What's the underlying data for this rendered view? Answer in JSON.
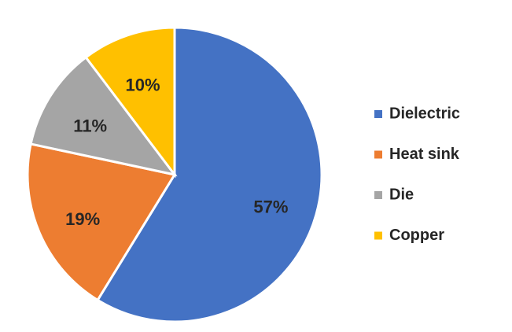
{
  "chart_data": {
    "type": "pie",
    "categories": [
      "Dielectric",
      "Heat sink",
      "Die",
      "Copper"
    ],
    "values": [
      57,
      19,
      11,
      10
    ],
    "value_labels": [
      "57%",
      "19%",
      "11%",
      "10%"
    ],
    "colors": [
      "#4472c4",
      "#ed7d31",
      "#a5a5a5",
      "#ffc000"
    ],
    "legend": "right"
  }
}
